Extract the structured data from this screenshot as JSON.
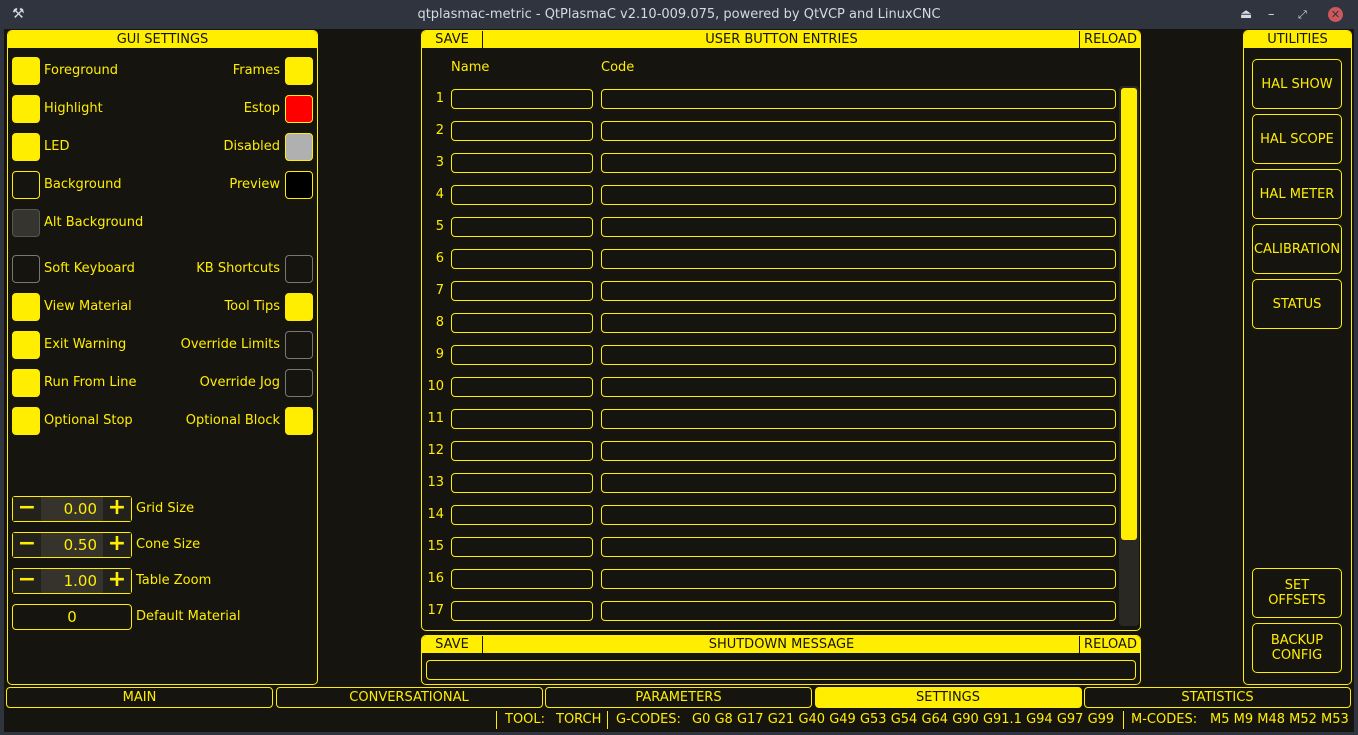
{
  "window": {
    "title": "qtplasmac-metric - QtPlasmaC v2.10-009.075, powered by QtVCP and LinuxCNC"
  },
  "colors": {
    "accent": "#ffee00",
    "background": "#16140f",
    "alt_background": "#36342e",
    "estop": "#ff0000",
    "disabled": "#b0b0b0",
    "preview": "#000000"
  },
  "gui_settings": {
    "title": "GUI SETTINGS",
    "colors_left": [
      {
        "label": "Foreground",
        "color": "#ffee00"
      },
      {
        "label": "Highlight",
        "color": "#ffee00"
      },
      {
        "label": "LED",
        "color": "#ffee00"
      },
      {
        "label": "Background",
        "color": "#16140f"
      },
      {
        "label": "Alt Background",
        "color": "#36342e"
      }
    ],
    "colors_right": [
      {
        "label": "Frames",
        "color": "#ffee00"
      },
      {
        "label": "Estop",
        "color": "#ff0000"
      },
      {
        "label": "Disabled",
        "color": "#b0b0b0"
      },
      {
        "label": "Preview",
        "color": "#000000"
      }
    ],
    "checks_left": [
      {
        "label": "Soft Keyboard",
        "checked": false
      },
      {
        "label": "View Material",
        "checked": true
      },
      {
        "label": "Exit Warning",
        "checked": true
      },
      {
        "label": "Run From Line",
        "checked": true
      },
      {
        "label": "Optional Stop",
        "checked": true
      }
    ],
    "checks_right": [
      {
        "label": "KB Shortcuts",
        "checked": false
      },
      {
        "label": "Tool Tips",
        "checked": true
      },
      {
        "label": "Override Limits",
        "checked": false
      },
      {
        "label": "Override Jog",
        "checked": false
      },
      {
        "label": "Optional Block",
        "checked": true
      }
    ],
    "spinners": [
      {
        "label": "Grid Size",
        "value": "0.00"
      },
      {
        "label": "Cone Size",
        "value": "0.50"
      },
      {
        "label": "Table Zoom",
        "value": "1.00"
      }
    ],
    "default_material": {
      "label": "Default Material",
      "value": "0"
    }
  },
  "user_buttons": {
    "save": "SAVE",
    "title": "USER BUTTON ENTRIES",
    "reload": "RELOAD",
    "col_name": "Name",
    "col_code": "Code",
    "rows": [
      "1",
      "2",
      "3",
      "4",
      "5",
      "6",
      "7",
      "8",
      "9",
      "10",
      "11",
      "12",
      "13",
      "14",
      "15",
      "16",
      "17"
    ]
  },
  "shutdown": {
    "save": "SAVE",
    "title": "SHUTDOWN MESSAGE",
    "reload": "RELOAD",
    "value": ""
  },
  "utilities": {
    "title": "UTILITIES",
    "buttons": [
      "HAL SHOW",
      "HAL SCOPE",
      "HAL METER",
      "CALIBRATION",
      "STATUS"
    ],
    "set_offsets": "SET\nOFFSETS",
    "backup_config": "BACKUP\nCONFIG"
  },
  "tabs": [
    {
      "label": "MAIN"
    },
    {
      "label": "CONVERSATIONAL"
    },
    {
      "label": "PARAMETERS"
    },
    {
      "label": "SETTINGS",
      "active": true
    },
    {
      "label": "STATISTICS"
    }
  ],
  "status": {
    "tool_label": "TOOL:",
    "tool": "TORCH",
    "gcodes_label": "G-CODES:",
    "gcodes": "G0 G8 G17 G21 G40 G49 G53 G54 G64 G90 G91.1 G94 G97 G99",
    "mcodes_label": "M-CODES:",
    "mcodes": "M5 M9 M48 M52 M53"
  }
}
